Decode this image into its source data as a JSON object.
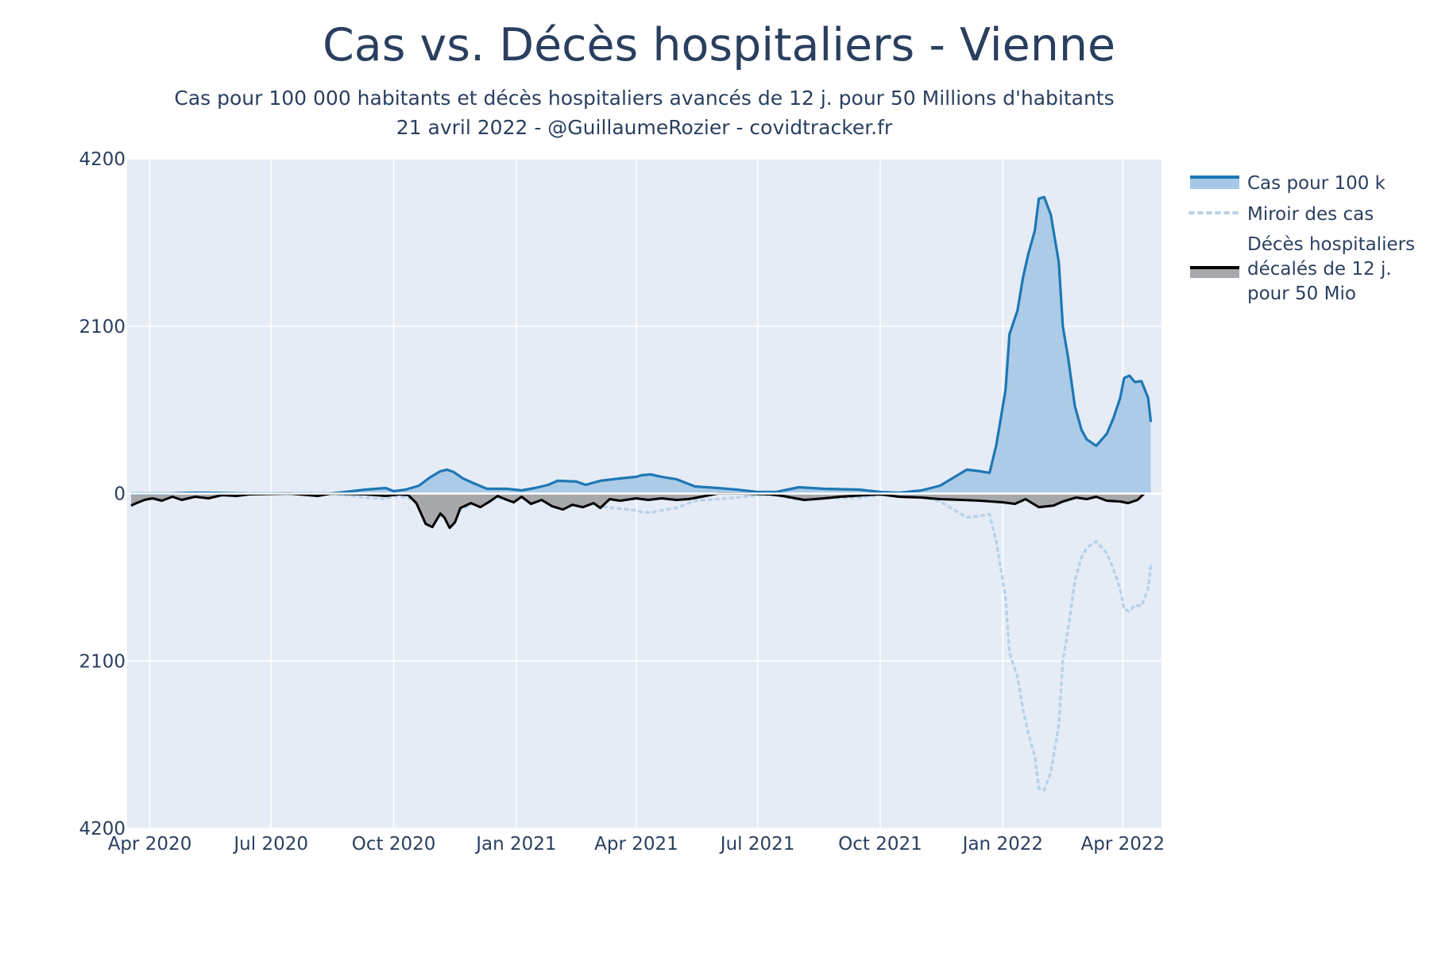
{
  "chart_data": {
    "type": "area",
    "title": "Cas vs. Décès hospitaliers - Vienne",
    "subtitle_lines": [
      "Cas pour 100 000 habitants et décès hospitaliers avancés de 12 j. pour 50 Millions d'habitants",
      "21 avril 2022 - @GuillaumeRozier - covidtracker.fr"
    ],
    "xlabel": "",
    "ylabel": "",
    "x_range": [
      "2020-03-15",
      "2022-04-30"
    ],
    "ylim": [
      -4200,
      4200
    ],
    "y_ticks": [
      {
        "value": 4200,
        "label": "4200"
      },
      {
        "value": 2100,
        "label": "2100"
      },
      {
        "value": 0,
        "label": "0"
      },
      {
        "value": -2100,
        "label": "2100"
      },
      {
        "value": -4200,
        "label": "4200"
      }
    ],
    "x_ticks": [
      {
        "date": "2020-04-01",
        "label": "Apr 2020"
      },
      {
        "date": "2020-07-01",
        "label": "Jul 2020"
      },
      {
        "date": "2020-10-01",
        "label": "Oct 2020"
      },
      {
        "date": "2021-01-01",
        "label": "Jan 2021"
      },
      {
        "date": "2021-04-01",
        "label": "Apr 2021"
      },
      {
        "date": "2021-07-01",
        "label": "Jul 2021"
      },
      {
        "date": "2021-10-01",
        "label": "Oct 2021"
      },
      {
        "date": "2022-01-01",
        "label": "Jan 2022"
      },
      {
        "date": "2022-04-01",
        "label": "Apr 2022"
      }
    ],
    "grid": true,
    "legend_position": "right",
    "colors": {
      "plot_bg": "#e5ecf6",
      "cases_line": "#1f77b4",
      "cases_fill": "#a5c8e6",
      "mirror": "#b8d2e8",
      "deaths_line": "#000000",
      "deaths_fill": "#a7a8ab"
    },
    "series": [
      {
        "name": "Cas pour 100 k",
        "style": "line-fill",
        "points": [
          [
            "2020-03-18",
            0
          ],
          [
            "2020-04-15",
            0
          ],
          [
            "2020-05-01",
            10
          ],
          [
            "2020-05-15",
            10
          ],
          [
            "2020-06-15",
            0
          ],
          [
            "2020-08-15",
            0
          ],
          [
            "2020-09-10",
            50
          ],
          [
            "2020-09-25",
            70
          ],
          [
            "2020-10-01",
            30
          ],
          [
            "2020-10-10",
            50
          ],
          [
            "2020-10-20",
            100
          ],
          [
            "2020-10-28",
            200
          ],
          [
            "2020-11-05",
            280
          ],
          [
            "2020-11-10",
            300
          ],
          [
            "2020-11-15",
            270
          ],
          [
            "2020-11-22",
            190
          ],
          [
            "2020-11-30",
            130
          ],
          [
            "2020-12-10",
            60
          ],
          [
            "2020-12-25",
            60
          ],
          [
            "2021-01-05",
            40
          ],
          [
            "2021-01-15",
            70
          ],
          [
            "2021-01-25",
            110
          ],
          [
            "2021-02-01",
            160
          ],
          [
            "2021-02-15",
            150
          ],
          [
            "2021-02-22",
            110
          ],
          [
            "2021-03-05",
            160
          ],
          [
            "2021-03-20",
            190
          ],
          [
            "2021-04-01",
            210
          ],
          [
            "2021-04-05",
            230
          ],
          [
            "2021-04-12",
            240
          ],
          [
            "2021-04-20",
            210
          ],
          [
            "2021-05-01",
            180
          ],
          [
            "2021-05-15",
            90
          ],
          [
            "2021-06-01",
            70
          ],
          [
            "2021-06-15",
            50
          ],
          [
            "2021-07-01",
            20
          ],
          [
            "2021-07-15",
            20
          ],
          [
            "2021-08-01",
            80
          ],
          [
            "2021-08-20",
            60
          ],
          [
            "2021-09-15",
            50
          ],
          [
            "2021-10-01",
            20
          ],
          [
            "2021-10-15",
            10
          ],
          [
            "2021-11-01",
            40
          ],
          [
            "2021-11-15",
            100
          ],
          [
            "2021-11-25",
            200
          ],
          [
            "2021-12-05",
            300
          ],
          [
            "2021-12-15",
            280
          ],
          [
            "2021-12-22",
            260
          ],
          [
            "2021-12-27",
            600
          ],
          [
            "2021-12-30",
            900
          ],
          [
            "2022-01-03",
            1300
          ],
          [
            "2022-01-06",
            2000
          ],
          [
            "2022-01-12",
            2300
          ],
          [
            "2022-01-16",
            2700
          ],
          [
            "2022-01-20",
            3000
          ],
          [
            "2022-01-25",
            3300
          ],
          [
            "2022-01-28",
            3700
          ],
          [
            "2022-02-01",
            3720
          ],
          [
            "2022-02-06",
            3500
          ],
          [
            "2022-02-12",
            2900
          ],
          [
            "2022-02-15",
            2100
          ],
          [
            "2022-02-19",
            1700
          ],
          [
            "2022-02-24",
            1100
          ],
          [
            "2022-03-01",
            800
          ],
          [
            "2022-03-05",
            680
          ],
          [
            "2022-03-12",
            600
          ],
          [
            "2022-03-20",
            750
          ],
          [
            "2022-03-25",
            950
          ],
          [
            "2022-03-30",
            1200
          ],
          [
            "2022-04-02",
            1450
          ],
          [
            "2022-04-06",
            1480
          ],
          [
            "2022-04-10",
            1400
          ],
          [
            "2022-04-15",
            1410
          ],
          [
            "2022-04-20",
            1200
          ],
          [
            "2022-04-22",
            900
          ]
        ]
      },
      {
        "name": "Miroir des cas",
        "style": "dotted",
        "mirror_of": "Cas pour 100 k"
      },
      {
        "name": "Décès hospitaliers décalés de 12 j. pour 50 Mio",
        "legend_lines": [
          "Décès hospitaliers",
          "décalés de 12 j.",
          "pour 50 Mio"
        ],
        "style": "line-fill-negative",
        "points": [
          [
            "2020-03-18",
            -150
          ],
          [
            "2020-03-22",
            -120
          ],
          [
            "2020-03-28",
            -80
          ],
          [
            "2020-04-03",
            -60
          ],
          [
            "2020-04-10",
            -90
          ],
          [
            "2020-04-18",
            -40
          ],
          [
            "2020-04-25",
            -80
          ],
          [
            "2020-05-05",
            -40
          ],
          [
            "2020-05-15",
            -60
          ],
          [
            "2020-05-25",
            -20
          ],
          [
            "2020-06-05",
            -30
          ],
          [
            "2020-06-15",
            -10
          ],
          [
            "2020-07-15",
            0
          ],
          [
            "2020-08-05",
            -30
          ],
          [
            "2020-08-15",
            0
          ],
          [
            "2020-09-10",
            -10
          ],
          [
            "2020-09-25",
            -30
          ],
          [
            "2020-10-05",
            -10
          ],
          [
            "2020-10-12",
            -20
          ],
          [
            "2020-10-18",
            -120
          ],
          [
            "2020-10-25",
            -380
          ],
          [
            "2020-10-30",
            -420
          ],
          [
            "2020-11-05",
            -250
          ],
          [
            "2020-11-08",
            -300
          ],
          [
            "2020-11-12",
            -430
          ],
          [
            "2020-11-16",
            -360
          ],
          [
            "2020-11-20",
            -180
          ],
          [
            "2020-11-28",
            -120
          ],
          [
            "2020-12-05",
            -170
          ],
          [
            "2020-12-12",
            -100
          ],
          [
            "2020-12-18",
            -30
          ],
          [
            "2020-12-25",
            -80
          ],
          [
            "2020-12-30",
            -110
          ],
          [
            "2021-01-05",
            -40
          ],
          [
            "2021-01-12",
            -130
          ],
          [
            "2021-01-20",
            -80
          ],
          [
            "2021-01-28",
            -160
          ],
          [
            "2021-02-05",
            -200
          ],
          [
            "2021-02-12",
            -140
          ],
          [
            "2021-02-20",
            -170
          ],
          [
            "2021-02-28",
            -120
          ],
          [
            "2021-03-05",
            -180
          ],
          [
            "2021-03-12",
            -70
          ],
          [
            "2021-03-20",
            -90
          ],
          [
            "2021-04-01",
            -60
          ],
          [
            "2021-04-10",
            -80
          ],
          [
            "2021-04-20",
            -60
          ],
          [
            "2021-05-01",
            -80
          ],
          [
            "2021-05-10",
            -70
          ],
          [
            "2021-05-20",
            -40
          ],
          [
            "2021-06-01",
            0
          ],
          [
            "2021-06-20",
            0
          ],
          [
            "2021-07-10",
            -10
          ],
          [
            "2021-07-20",
            -30
          ],
          [
            "2021-08-05",
            -80
          ],
          [
            "2021-08-20",
            -60
          ],
          [
            "2021-09-01",
            -40
          ],
          [
            "2021-09-20",
            -20
          ],
          [
            "2021-10-01",
            -10
          ],
          [
            "2021-10-15",
            -40
          ],
          [
            "2021-11-01",
            -50
          ],
          [
            "2021-11-15",
            -70
          ],
          [
            "2021-12-01",
            -80
          ],
          [
            "2021-12-15",
            -90
          ],
          [
            "2022-01-01",
            -110
          ],
          [
            "2022-01-10",
            -130
          ],
          [
            "2022-01-18",
            -70
          ],
          [
            "2022-01-28",
            -170
          ],
          [
            "2022-02-08",
            -150
          ],
          [
            "2022-02-15",
            -100
          ],
          [
            "2022-02-25",
            -50
          ],
          [
            "2022-03-05",
            -70
          ],
          [
            "2022-03-12",
            -40
          ],
          [
            "2022-03-20",
            -90
          ],
          [
            "2022-03-30",
            -100
          ],
          [
            "2022-04-05",
            -120
          ],
          [
            "2022-04-12",
            -80
          ],
          [
            "2022-04-17",
            0
          ]
        ]
      }
    ]
  }
}
